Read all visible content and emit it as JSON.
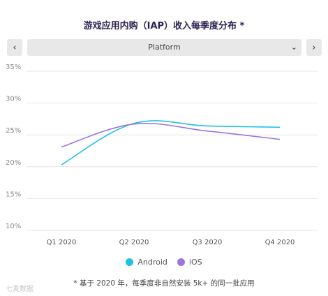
{
  "header": {
    "title": "游戏应用内购（IAP）收入每季度分布 *"
  },
  "controls": {
    "prev_glyph": "‹",
    "next_glyph": "›",
    "dropdown_value": "Platform",
    "dropdown_icon": "chevron-down-icon"
  },
  "chart_data": {
    "type": "line",
    "categories": [
      "Q1 2020",
      "Q2 2020",
      "Q3 2020",
      "Q4 2020"
    ],
    "y_ticks": [
      "35%",
      "30%",
      "25%",
      "20%",
      "15%",
      "10%"
    ],
    "ylim": [
      10,
      35
    ],
    "grid": true,
    "legend_position": "bottom",
    "series": [
      {
        "name": "Android",
        "color": "#1ec0e6",
        "values": [
          20.3,
          26.8,
          26.4,
          26.2
        ]
      },
      {
        "name": "iOS",
        "color": "#9b74e0",
        "values": [
          23.1,
          26.7,
          25.6,
          24.3
        ]
      }
    ]
  },
  "footnote": "* 基于 2020 年，每季度非自然安装 5k+ 的同一批应用",
  "watermark": "七麦数据"
}
